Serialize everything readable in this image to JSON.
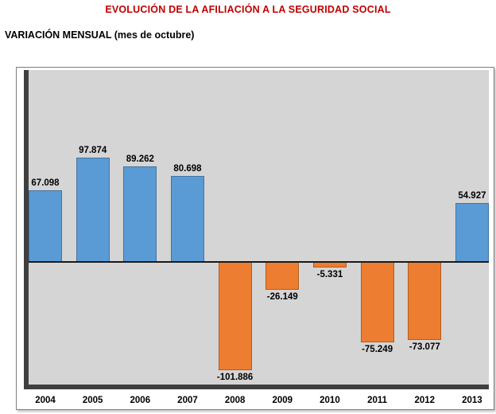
{
  "page": {
    "title": "EVOLUCIÓN DE LA AFILIACIÓN A LA SEGURIDAD SOCIAL",
    "subtitle": "VARIACIÓN MENSUAL (mes de octubre)"
  },
  "chart_data": {
    "type": "bar",
    "title": "EVOLUCIÓN DE LA AFILIACIÓN A LA SEGURIDAD SOCIAL",
    "subtitle": "VARIACIÓN MENSUAL (mes de octubre)",
    "categories": [
      "2004",
      "2005",
      "2006",
      "2007",
      "2008",
      "2009",
      "2010",
      "2011",
      "2012",
      "2013"
    ],
    "values": [
      67098,
      97874,
      89262,
      80698,
      -101886,
      -26149,
      -5331,
      -75249,
      -73077,
      54927
    ],
    "value_labels": [
      "67.098",
      "97.874",
      "89.262",
      "80.698",
      "-101.886",
      "-26.149",
      "-5.331",
      "-75.249",
      "-73.077",
      "54.927"
    ],
    "xlabel": "",
    "ylabel": "",
    "ylim": [
      -115000,
      180000
    ],
    "grid": false,
    "legend": "none",
    "colors": {
      "title": "#C00000",
      "positive_bar": "#5B9BD5",
      "negative_bar": "#ED7D31",
      "plot_background": "#D5D5D5",
      "axis_shadow": "#3f3f3f",
      "zero_line": "#1a1a1a"
    }
  }
}
